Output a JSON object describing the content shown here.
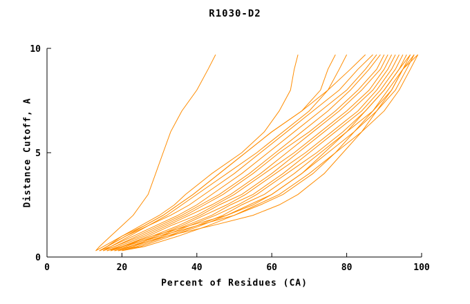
{
  "chart_data": {
    "type": "line",
    "title": "R1030-D2",
    "xlabel": "Percent of Residues (CA)",
    "ylabel": "Distance Cutoff, A",
    "xlim": [
      0,
      100
    ],
    "ylim": [
      0,
      10
    ],
    "xticks": [
      0,
      20,
      40,
      60,
      80,
      100
    ],
    "yticks": [
      0,
      5,
      10
    ],
    "grid": false,
    "legend": "none",
    "line_color": "#ff8c00",
    "axis_color": "#000000",
    "cutoffs": [
      0.3,
      0.5,
      1.0,
      1.5,
      2.0,
      2.5,
      3.0,
      4.0,
      5.0,
      6.0,
      7.0,
      8.0,
      9.0,
      9.7
    ],
    "series": [
      {
        "percents": [
          13,
          14,
          17,
          20,
          23,
          25,
          27,
          29,
          31,
          33,
          36,
          40,
          43,
          45
        ]
      },
      {
        "percents": [
          14,
          16,
          20,
          25,
          30,
          34,
          37,
          44,
          52,
          58,
          62,
          65,
          66,
          67
        ]
      },
      {
        "percents": [
          14,
          16,
          21,
          26,
          31,
          35,
          39,
          46,
          53,
          60,
          68,
          73,
          75,
          77
        ]
      },
      {
        "percents": [
          15,
          17,
          22,
          27,
          32,
          36,
          40,
          48,
          56,
          63,
          70,
          75,
          78,
          80
        ]
      },
      {
        "percents": [
          13,
          15,
          20,
          26,
          31,
          35,
          39,
          46,
          53,
          60,
          68,
          75,
          81,
          85
        ]
      },
      {
        "percents": [
          14,
          16,
          21,
          27,
          33,
          38,
          42,
          50,
          57,
          64,
          71,
          78,
          83,
          87
        ]
      },
      {
        "percents": [
          14,
          17,
          23,
          29,
          35,
          40,
          44,
          52,
          59,
          66,
          73,
          80,
          85,
          88
        ]
      },
      {
        "percents": [
          15,
          18,
          24,
          30,
          36,
          41,
          46,
          54,
          61,
          68,
          75,
          81,
          86,
          89
        ]
      },
      {
        "percents": [
          15,
          18,
          25,
          31,
          37,
          42,
          47,
          55,
          62,
          70,
          77,
          83,
          88,
          90
        ]
      },
      {
        "percents": [
          16,
          19,
          26,
          32,
          38,
          44,
          49,
          57,
          64,
          71,
          78,
          84,
          89,
          91
        ]
      },
      {
        "percents": [
          16,
          20,
          27,
          33,
          40,
          45,
          50,
          58,
          66,
          73,
          80,
          86,
          90,
          92
        ]
      },
      {
        "percents": [
          17,
          20,
          28,
          35,
          41,
          46,
          52,
          60,
          67,
          74,
          81,
          87,
          91,
          93
        ]
      },
      {
        "percents": [
          17,
          21,
          29,
          36,
          42,
          48,
          53,
          61,
          69,
          76,
          83,
          88,
          92,
          94
        ]
      },
      {
        "percents": [
          18,
          22,
          30,
          37,
          44,
          49,
          55,
          63,
          70,
          77,
          84,
          89,
          93,
          95
        ]
      },
      {
        "percents": [
          18,
          23,
          31,
          38,
          45,
          51,
          56,
          64,
          72,
          79,
          85,
          90,
          94,
          96
        ]
      },
      {
        "percents": [
          19,
          24,
          32,
          40,
          47,
          52,
          58,
          66,
          73,
          80,
          87,
          92,
          95,
          97
        ]
      },
      {
        "percents": [
          19,
          25,
          33,
          41,
          48,
          54,
          60,
          68,
          75,
          82,
          88,
          93,
          96,
          98
        ]
      },
      {
        "percents": [
          20,
          26,
          35,
          43,
          50,
          56,
          62,
          70,
          77,
          84,
          90,
          94,
          97,
          99
        ]
      },
      {
        "percents": [
          17,
          20,
          28,
          38,
          48,
          55,
          60,
          68,
          74,
          80,
          85,
          90,
          94,
          97
        ]
      },
      {
        "percents": [
          18,
          22,
          32,
          44,
          55,
          62,
          67,
          74,
          79,
          84,
          88,
          92,
          95,
          98
        ]
      },
      {
        "percents": [
          16,
          20,
          30,
          40,
          50,
          57,
          63,
          71,
          77,
          82,
          87,
          91,
          95,
          99
        ]
      }
    ]
  }
}
